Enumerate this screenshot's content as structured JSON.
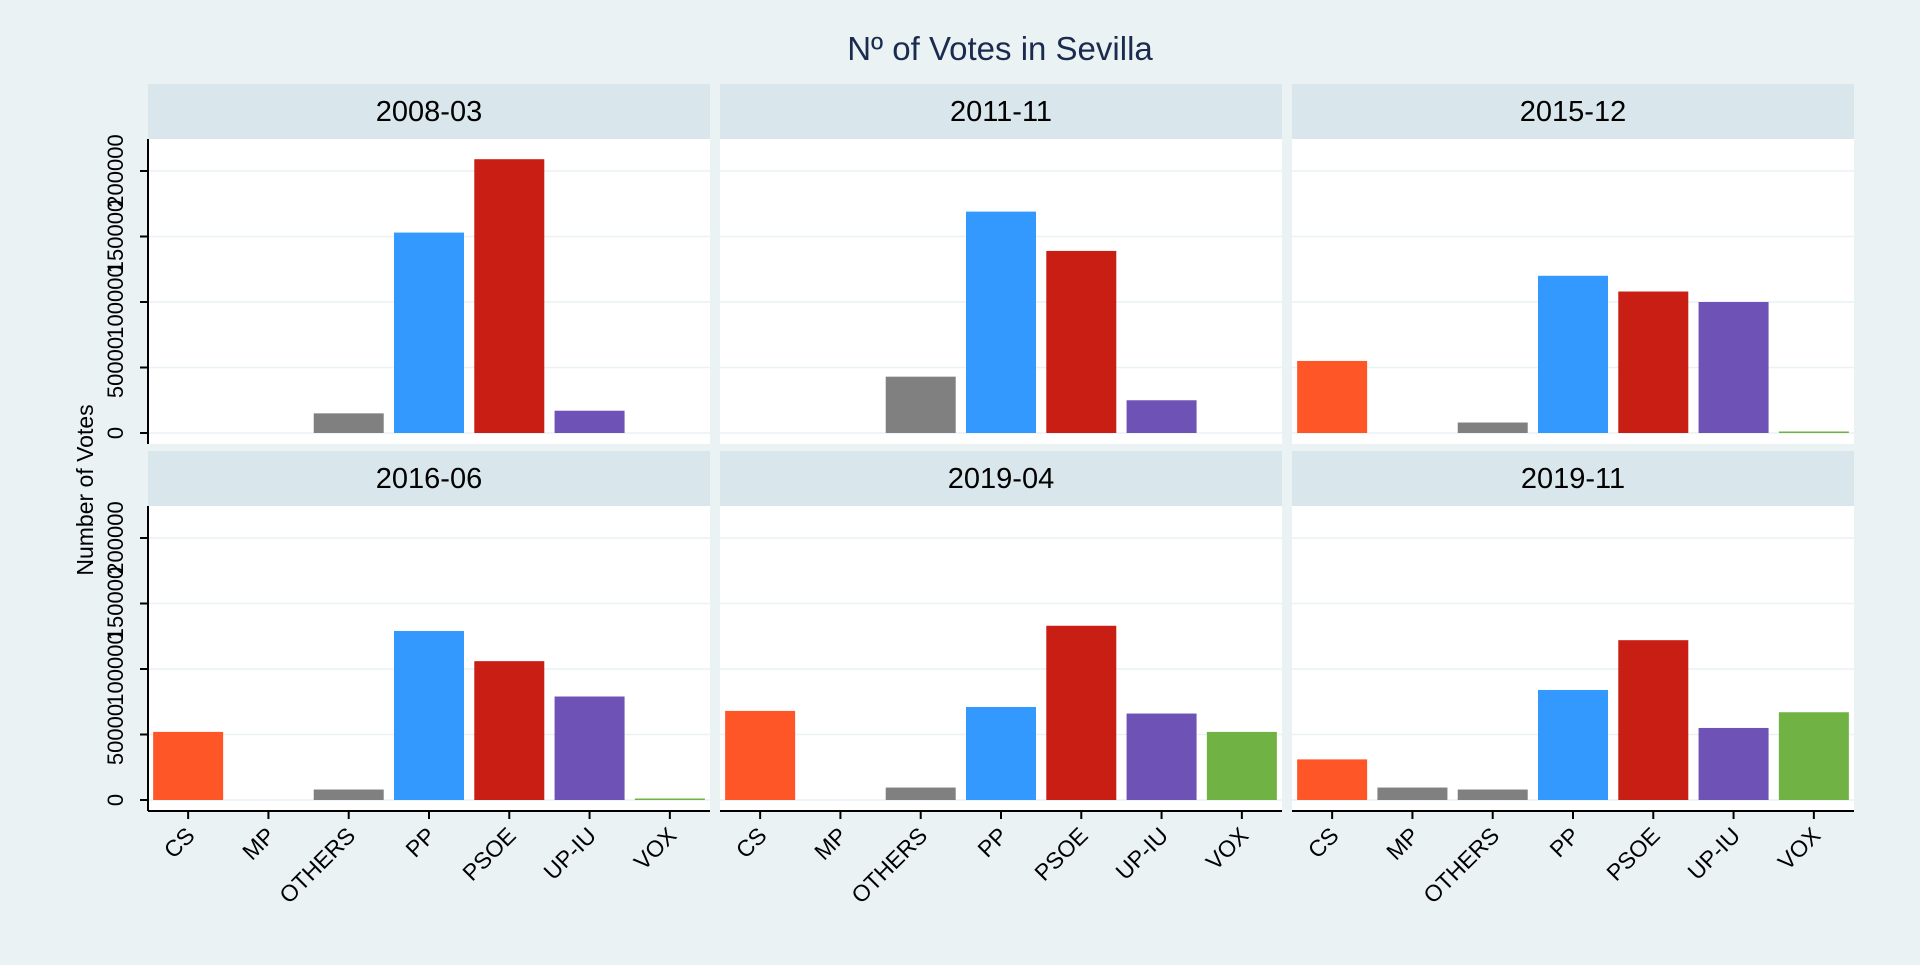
{
  "chart_data": {
    "type": "bar",
    "title": "Nº of Votes in Sevilla",
    "xlabel": "",
    "ylabel": "Number of Votes",
    "ylim": [
      0,
      220000
    ],
    "yticks": [
      0,
      50000,
      100000,
      150000,
      200000
    ],
    "ytick_labels": [
      "0",
      "50000",
      "100000",
      "150000",
      "200000"
    ],
    "grid": true,
    "legend": "none",
    "categories": [
      "CS",
      "MP",
      "OTHERS",
      "PP",
      "PSOE",
      "UP-IU",
      "VOX"
    ],
    "colors": {
      "CS": "#ff5628",
      "MP": "#808080",
      "OTHERS": "#808080",
      "PP": "#3399ff",
      "PSOE": "#c81e14",
      "UP-IU": "#6f52b5",
      "VOX": "#70b244"
    },
    "panels": [
      {
        "label": "2008-03",
        "values": {
          "CS": null,
          "MP": null,
          "OTHERS": 15000,
          "PP": 153000,
          "PSOE": 209000,
          "UP-IU": 17000,
          "VOX": null
        }
      },
      {
        "label": "2011-11",
        "values": {
          "CS": null,
          "MP": null,
          "OTHERS": 43000,
          "PP": 169000,
          "PSOE": 139000,
          "UP-IU": 25000,
          "VOX": null
        }
      },
      {
        "label": "2015-12",
        "values": {
          "CS": 55000,
          "MP": null,
          "OTHERS": 8000,
          "PP": 120000,
          "PSOE": 108000,
          "UP-IU": 100000,
          "VOX": 1000
        }
      },
      {
        "label": "2016-06",
        "values": {
          "CS": 52000,
          "MP": null,
          "OTHERS": 8000,
          "PP": 129000,
          "PSOE": 106000,
          "UP-IU": 79000,
          "VOX": 1000
        }
      },
      {
        "label": "2019-04",
        "values": {
          "CS": 68000,
          "MP": null,
          "OTHERS": 9500,
          "PP": 71000,
          "PSOE": 133000,
          "UP-IU": 66000,
          "VOX": 52000
        }
      },
      {
        "label": "2019-11",
        "values": {
          "CS": 31000,
          "MP": 9500,
          "OTHERS": 8000,
          "PP": 84000,
          "PSOE": 122000,
          "UP-IU": 55000,
          "VOX": 67000
        }
      }
    ]
  }
}
